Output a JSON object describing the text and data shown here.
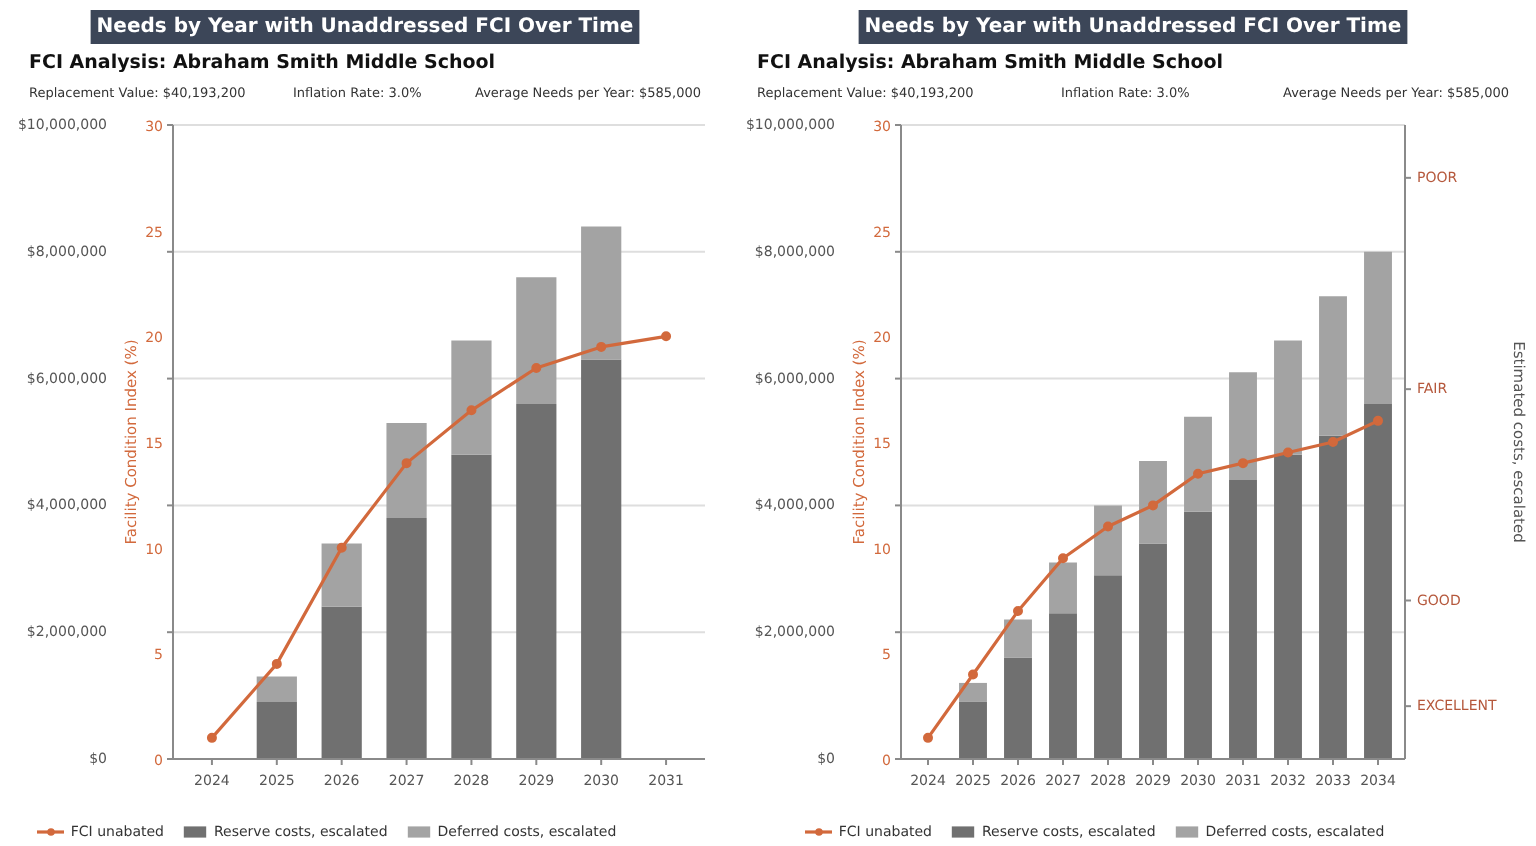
{
  "chart_data": [
    {
      "type": "bar",
      "stacked": true,
      "title": "Needs by Year with Unaddressed FCI Over Time",
      "subtitle": "FCI Analysis: Abraham Smith Middle School",
      "annotations": [
        "Replacement Value: $40,193,200",
        "Inflation Rate: 3.0%",
        "Average Needs per Year: $585,000"
      ],
      "categories": [
        "2024",
        "2025",
        "2026",
        "2027",
        "2028",
        "2029",
        "2030",
        "2031"
      ],
      "series": [
        {
          "name": "FCI unabated",
          "type": "line",
          "axis": "y2",
          "color": "#d2693c",
          "values": [
            1,
            4.5,
            10,
            14,
            16.5,
            18.5,
            19.5,
            20
          ]
        },
        {
          "name": "Reserve costs, escalated",
          "color": "#707070",
          "values": [
            null,
            900000,
            2400000,
            3800000,
            4800000,
            5600000,
            6300000,
            null
          ]
        },
        {
          "name": "Deferred costs, escalated",
          "color": "#a3a3a3",
          "values": [
            null,
            400000,
            1000000,
            1500000,
            1800000,
            2000000,
            2100000,
            null
          ]
        }
      ],
      "ylim": [
        0,
        10000000
      ],
      "yticks": [
        {
          "value": 0,
          "label": "$0"
        },
        {
          "value": 2000000,
          "label": "$2,000,000"
        },
        {
          "value": 4000000,
          "label": "$4,000,000"
        },
        {
          "value": 6000000,
          "label": "$6,000,000"
        },
        {
          "value": 8000000,
          "label": "$8,000,000"
        },
        {
          "value": 10000000,
          "label": "$10,000,000"
        }
      ],
      "y2lim": [
        0,
        30
      ],
      "y2ticks": [
        0,
        5,
        10,
        15,
        20,
        25,
        30
      ],
      "y2label": "Facility Condition Index (%)",
      "grid": "y",
      "legend": "bottom",
      "marker": "circle"
    },
    {
      "type": "bar",
      "stacked": true,
      "title": "Needs by Year with Unaddressed FCI Over Time",
      "subtitle": "FCI Analysis: Abraham Smith Middle School",
      "annotations": [
        "Replacement Value: $40,193,200",
        "Inflation Rate: 3.0%",
        "Average Needs per Year: $585,000"
      ],
      "categories": [
        "2024",
        "2025",
        "2026",
        "2027",
        "2028",
        "2029",
        "2030",
        "2031",
        "2032",
        "2033",
        "2034"
      ],
      "series": [
        {
          "name": "FCI unabated",
          "type": "line",
          "axis": "y3",
          "color": "#d2693c",
          "values": [
            1,
            4,
            7,
            9.5,
            11,
            12,
            13.5,
            14,
            14.5,
            15,
            16
          ]
        },
        {
          "name": "Reserve costs, escalated",
          "color": "#707070",
          "values": [
            null,
            900000,
            1600000,
            2300000,
            2900000,
            3400000,
            3900000,
            4400000,
            4800000,
            5100000,
            5600000
          ]
        },
        {
          "name": "Deferred costs, escalated",
          "color": "#a3a3a3",
          "values": [
            null,
            300000,
            600000,
            800000,
            1100000,
            1300000,
            1500000,
            1700000,
            1800000,
            2200000,
            2400000
          ]
        }
      ],
      "ylim": [
        0,
        10000000
      ],
      "yticks": [
        {
          "value": 0,
          "label": "$0"
        },
        {
          "value": 2000000,
          "label": "$2,000,000"
        },
        {
          "value": 4000000,
          "label": "$4,000,000"
        },
        {
          "value": 6000000,
          "label": "$6,000,000"
        },
        {
          "value": 8000000,
          "label": "$8,000,000"
        },
        {
          "value": 10000000,
          "label": "$10,000,000"
        }
      ],
      "y3lim": [
        0,
        30
      ],
      "y3ticks": [
        0,
        5,
        10,
        15,
        20,
        25,
        30
      ],
      "y3label": "Facility Condition Index (%)",
      "y2_categories": [
        "POOR",
        null,
        "FAIR",
        null,
        "GOOD",
        "EXCELLENT"
      ],
      "y2label": "Estimated costs, escalated",
      "grid": "y",
      "legend": "bottom",
      "marker": "circle"
    }
  ]
}
